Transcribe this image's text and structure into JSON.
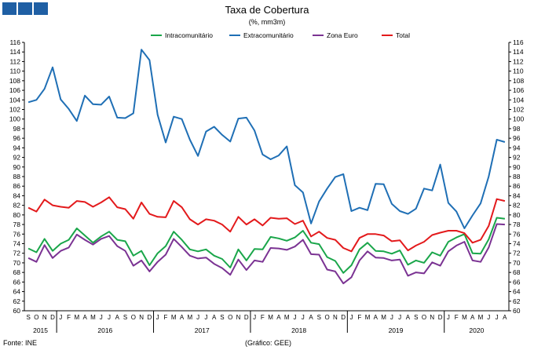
{
  "header_squares": {
    "color": "#1f5fa4",
    "count": 3
  },
  "footer": {
    "source": "Fonte: INE",
    "credit": "(Gráfico: GEE)"
  },
  "chart_data": {
    "type": "line",
    "title": "Taxa de Cobertura",
    "subtitle": "(%, mm3m)",
    "legend_position": "top-center",
    "ylim": [
      60,
      116
    ],
    "ytick_step": 2,
    "grid": false,
    "month_labels": [
      "S",
      "O",
      "N",
      "D",
      "J",
      "F",
      "M",
      "A",
      "M",
      "J",
      "J",
      "A",
      "S",
      "O",
      "N",
      "D",
      "J",
      "F",
      "M",
      "A",
      "M",
      "J",
      "J",
      "A",
      "S",
      "O",
      "N",
      "D",
      "J",
      "F",
      "M",
      "A",
      "M",
      "J",
      "J",
      "A",
      "S",
      "O",
      "N",
      "D",
      "J",
      "F",
      "M",
      "A",
      "M",
      "J",
      "J",
      "A",
      "S",
      "O",
      "N",
      "D",
      "J",
      "F",
      "M",
      "A",
      "M",
      "J",
      "J",
      "A"
    ],
    "years": [
      {
        "label": "2015",
        "start": 0,
        "end": 3
      },
      {
        "label": "2016",
        "start": 4,
        "end": 15
      },
      {
        "label": "2017",
        "start": 16,
        "end": 27
      },
      {
        "label": "2018",
        "start": 28,
        "end": 39
      },
      {
        "label": "2019",
        "start": 40,
        "end": 51
      },
      {
        "label": "2020",
        "start": 52,
        "end": 59
      }
    ],
    "series": [
      {
        "name": "Intracomunitário",
        "color": "#1aa64a",
        "values": [
          73.0,
          72.2,
          75.0,
          72.5,
          74.0,
          74.8,
          77.2,
          75.7,
          74.2,
          75.5,
          76.5,
          74.8,
          74.5,
          71.5,
          72.5,
          69.5,
          72.0,
          73.5,
          76.5,
          74.8,
          72.8,
          72.4,
          72.8,
          71.5,
          70.8,
          69.0,
          72.8,
          70.5,
          72.9,
          72.8,
          75.4,
          75.1,
          74.6,
          75.3,
          76.7,
          74.2,
          73.9,
          71.2,
          70.4,
          67.9,
          69.5,
          72.8,
          74.2,
          72.5,
          72.4,
          71.9,
          72.6,
          69.6,
          70.5,
          70.0,
          72.2,
          71.5,
          74.4,
          75.3,
          76.0,
          72.0,
          71.9,
          74.9,
          79.4,
          79.2
        ]
      },
      {
        "name": "Extracomunitário",
        "color": "#1f6fb5",
        "values": [
          103.5,
          104.0,
          106.3,
          110.8,
          104.1,
          102.1,
          99.6,
          104.9,
          103.1,
          103.0,
          104.7,
          100.3,
          100.2,
          101.2,
          114.5,
          112.3,
          100.9,
          95.1,
          100.5,
          100.0,
          95.7,
          92.3,
          97.4,
          98.4,
          96.7,
          95.3,
          100.1,
          100.3,
          97.6,
          92.6,
          91.6,
          92.4,
          94.3,
          86.2,
          84.7,
          78.2,
          82.8,
          85.5,
          87.9,
          88.5,
          80.8,
          81.5,
          81.0,
          86.5,
          86.4,
          82.3,
          80.8,
          80.2,
          81.3,
          85.5,
          85.1,
          90.5,
          82.5,
          80.7,
          77.2,
          79.9,
          82.4,
          88.0,
          95.7,
          95.2
        ]
      },
      {
        "name": "Zona Euro",
        "color": "#7b3393",
        "values": [
          71.0,
          70.2,
          73.7,
          71.0,
          72.5,
          73.2,
          75.9,
          74.8,
          73.8,
          75.0,
          75.6,
          73.5,
          72.5,
          69.4,
          70.5,
          68.2,
          70.2,
          71.7,
          75.0,
          73.3,
          71.5,
          70.9,
          71.1,
          69.8,
          68.9,
          67.5,
          70.7,
          68.5,
          70.5,
          70.2,
          73.1,
          73.0,
          72.7,
          73.4,
          74.8,
          71.8,
          71.7,
          68.6,
          68.2,
          65.7,
          67.0,
          70.5,
          72.4,
          71.1,
          71.0,
          70.5,
          70.7,
          67.3,
          68.0,
          67.8,
          70.1,
          69.4,
          72.4,
          73.6,
          74.4,
          70.5,
          70.2,
          73.2,
          78.1,
          78.0
        ]
      },
      {
        "name": "Total",
        "color": "#e31a1c",
        "values": [
          81.5,
          80.7,
          83.2,
          82.0,
          81.7,
          81.5,
          82.9,
          82.7,
          81.7,
          82.6,
          83.7,
          81.6,
          81.2,
          79.2,
          82.6,
          80.2,
          79.6,
          79.5,
          82.9,
          81.6,
          79.1,
          78.0,
          79.1,
          78.8,
          78.0,
          76.5,
          79.6,
          78.0,
          79.1,
          77.8,
          79.4,
          79.2,
          79.3,
          78.1,
          78.8,
          75.5,
          76.5,
          75.2,
          74.8,
          73.1,
          72.4,
          75.2,
          76.0,
          76.0,
          75.7,
          74.5,
          74.7,
          72.6,
          73.6,
          74.4,
          75.8,
          76.3,
          76.7,
          76.7,
          76.2,
          74.2,
          74.8,
          77.7,
          83.3,
          82.9
        ]
      }
    ]
  }
}
